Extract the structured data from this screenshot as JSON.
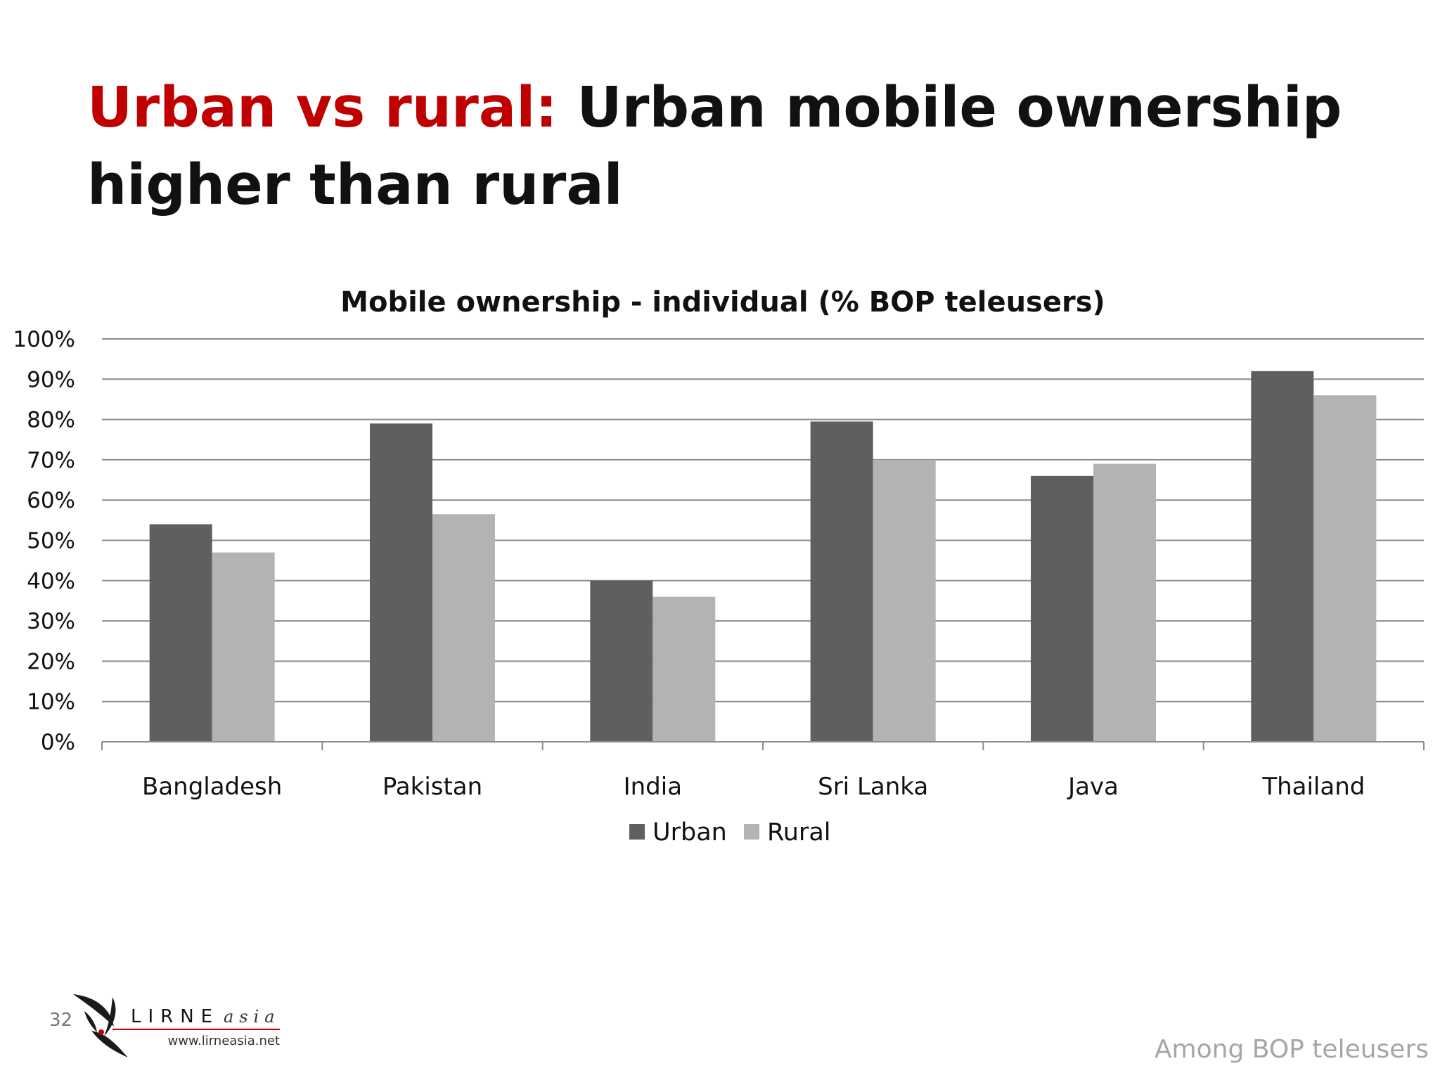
{
  "slide": {
    "title_accent": "Urban vs rural:",
    "title_rest": " Urban mobile ownership higher than rural",
    "page_number": "32",
    "footer_note": "Among BOP teleusers",
    "logo": {
      "name": "LIRNEasia",
      "url_text": "www.lirneasia.net"
    }
  },
  "chart_data": {
    "type": "bar",
    "title": "Mobile ownership - individual (% BOP teleusers)",
    "categories": [
      "Bangladesh",
      "Pakistan",
      "India",
      "Sri Lanka",
      "Java",
      "Thailand"
    ],
    "series": [
      {
        "name": "Urban",
        "values": [
          54,
          79,
          40,
          79.5,
          66,
          92
        ],
        "color": "#605e60"
      },
      {
        "name": "Rural",
        "values": [
          47,
          56.5,
          36,
          70,
          69,
          86
        ],
        "color": "#b3b2b4"
      }
    ],
    "ylim": [
      0,
      100
    ],
    "yticks": [
      "0%",
      "10%",
      "20%",
      "30%",
      "40%",
      "50%",
      "60%",
      "70%",
      "80%",
      "90%",
      "100%"
    ],
    "grid": true,
    "legend": "bottom-center"
  }
}
